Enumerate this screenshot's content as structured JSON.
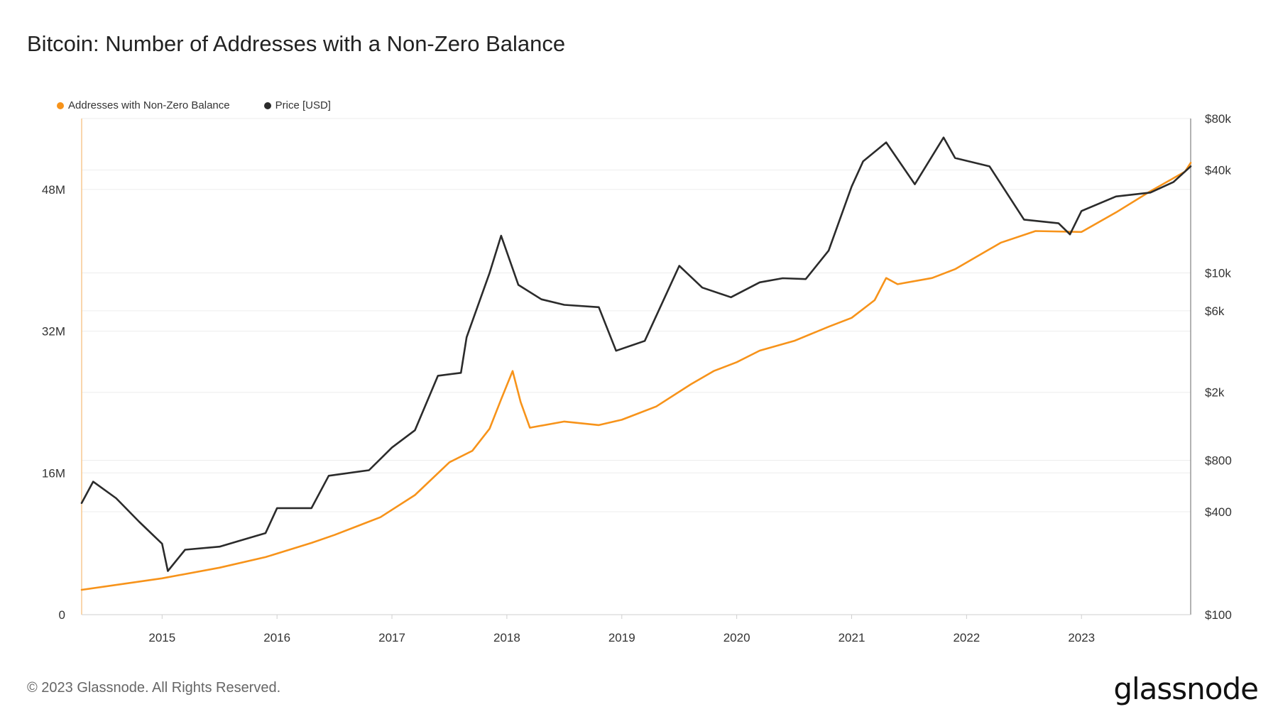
{
  "title": "Bitcoin: Number of Addresses with a Non-Zero Balance",
  "footer": "© 2023 Glassnode. All Rights Reserved.",
  "brand": "glassnode",
  "colors": {
    "addresses": "#F7931A",
    "price": "#2B2B2B",
    "grid": "#EDEDED",
    "axis": "#CFCFCF"
  },
  "chart_data": {
    "type": "line",
    "title": "Bitcoin: Number of Addresses with a Non-Zero Balance",
    "legend": {
      "placement": "top-left",
      "entries": [
        "Addresses with Non-Zero Balance",
        "Price [USD]"
      ]
    },
    "grid": true,
    "x_ticks": [
      "2015",
      "2016",
      "2017",
      "2018",
      "2019",
      "2020",
      "2021",
      "2022",
      "2023"
    ],
    "x_range": [
      2014.3,
      2023.95
    ],
    "y_left": {
      "ticks": [
        "0",
        "16M",
        "32M",
        "48M"
      ],
      "tick_values": [
        0,
        16000000,
        32000000,
        48000000
      ],
      "range": [
        0,
        56000000
      ]
    },
    "y_right": {
      "scale": "log",
      "ticks": [
        "$100",
        "$400",
        "$800",
        "$2k",
        "$6k",
        "$10k",
        "$40k",
        "$80k"
      ],
      "tick_values": [
        100,
        400,
        800,
        2000,
        6000,
        10000,
        40000,
        80000
      ],
      "range": [
        100,
        80000
      ]
    },
    "series": [
      {
        "name": "Addresses with Non-Zero Balance",
        "axis": "left",
        "x": [
          2014.3,
          2015.0,
          2015.5,
          2015.9,
          2016.3,
          2016.5,
          2016.9,
          2017.2,
          2017.5,
          2017.7,
          2017.85,
          2017.95,
          2018.05,
          2018.12,
          2018.2,
          2018.5,
          2018.8,
          2019.0,
          2019.3,
          2019.6,
          2019.8,
          2020.0,
          2020.2,
          2020.5,
          2020.8,
          2021.0,
          2021.2,
          2021.3,
          2021.4,
          2021.7,
          2021.9,
          2022.1,
          2022.3,
          2022.6,
          2023.0,
          2023.3,
          2023.6,
          2023.9,
          2023.95
        ],
        "y": [
          2800000,
          4100000,
          5300000,
          6500000,
          8100000,
          9000000,
          11000000,
          13500000,
          17200000,
          18500000,
          21000000,
          24300000,
          27500000,
          24000000,
          21100000,
          21800000,
          21400000,
          22000000,
          23500000,
          26000000,
          27500000,
          28500000,
          29800000,
          30900000,
          32500000,
          33500000,
          35500000,
          38000000,
          37300000,
          38000000,
          39000000,
          40500000,
          42000000,
          43300000,
          43200000,
          45400000,
          47800000,
          50000000,
          51000000
        ]
      },
      {
        "name": "Price [USD]",
        "axis": "right",
        "x": [
          2014.3,
          2014.4,
          2014.6,
          2014.8,
          2015.0,
          2015.05,
          2015.2,
          2015.5,
          2015.9,
          2016.0,
          2016.3,
          2016.45,
          2016.8,
          2017.0,
          2017.2,
          2017.4,
          2017.6,
          2017.65,
          2017.85,
          2017.95,
          2018.1,
          2018.3,
          2018.5,
          2018.8,
          2018.95,
          2019.2,
          2019.5,
          2019.7,
          2019.95,
          2020.2,
          2020.4,
          2020.6,
          2020.8,
          2021.0,
          2021.1,
          2021.3,
          2021.55,
          2021.8,
          2021.9,
          2022.2,
          2022.5,
          2022.8,
          2022.9,
          2023.0,
          2023.3,
          2023.6,
          2023.8,
          2023.95
        ],
        "y": [
          450,
          600,
          480,
          350,
          260,
          180,
          240,
          250,
          300,
          420,
          420,
          650,
          700,
          950,
          1200,
          2500,
          2600,
          4200,
          10000,
          16500,
          8500,
          7000,
          6500,
          6300,
          3500,
          4000,
          11000,
          8200,
          7200,
          8800,
          9300,
          9200,
          13500,
          32000,
          45000,
          58000,
          33000,
          62000,
          47000,
          42000,
          20500,
          19500,
          16800,
          23000,
          28000,
          29500,
          34000,
          42000
        ]
      }
    ]
  }
}
